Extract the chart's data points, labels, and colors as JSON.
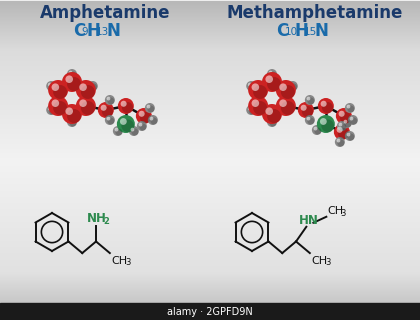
{
  "title1": "Amphetamine",
  "title2": "Methamphetamine",
  "title_color": "#1a3a6b",
  "formula_color": "#1a6baa",
  "nitrogen_color": "#2d8a4e",
  "carbon_color": "#cc2222",
  "hydrogen_color": "#888888",
  "bond_color": "#111111",
  "watermark_text": "alamy · 2GPFD9N",
  "watermark_bg": "#1a1a1a",
  "bg_grays": [
    0.78,
    0.92,
    0.82,
    0.75
  ]
}
